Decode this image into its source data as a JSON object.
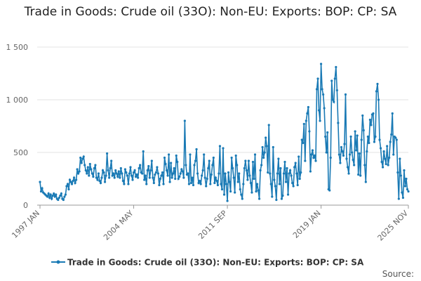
{
  "chart_data": {
    "type": "line",
    "title": "Trade in Goods: Crude oil (33O): Non-EU: Exports: BOP: CP: SA",
    "source": "Source:",
    "categories": [
      "1997 JAN",
      null,
      null,
      null,
      null,
      null,
      null,
      null,
      null,
      null,
      null,
      null,
      null,
      null,
      null,
      null,
      null,
      null,
      null,
      null,
      null,
      null,
      null,
      null,
      null,
      null,
      null,
      null,
      null,
      null,
      null,
      null,
      null,
      null,
      null,
      null,
      null,
      null,
      null,
      null,
      null,
      null,
      null,
      null,
      null,
      null,
      null,
      null,
      null,
      null,
      null,
      null,
      null,
      null,
      null,
      null,
      null,
      null,
      null,
      null,
      null,
      null,
      null,
      null,
      null,
      null,
      null,
      null,
      null,
      null,
      null,
      null,
      null,
      null,
      null,
      null,
      null,
      null,
      null,
      null,
      null,
      null,
      null,
      null,
      null,
      null,
      null,
      null,
      "2004 MAY",
      null,
      null,
      null,
      null,
      null,
      null,
      null,
      null,
      null,
      null,
      null,
      null,
      null,
      null,
      null,
      null,
      null,
      null,
      null,
      null,
      null,
      null,
      null,
      null,
      null,
      null,
      null,
      null,
      null,
      null,
      null,
      null,
      null,
      null,
      null,
      null,
      null,
      null,
      null,
      null,
      null,
      null,
      null,
      null,
      null,
      null,
      null,
      null,
      null,
      null,
      null,
      null,
      null,
      null,
      null,
      null,
      null,
      null,
      null,
      null,
      null,
      null,
      null,
      null,
      null,
      null,
      null,
      null,
      null,
      null,
      null,
      null,
      null,
      null,
      null,
      null,
      null,
      null,
      null,
      null,
      null,
      null,
      null,
      null,
      null,
      null,
      null,
      "2011 SEP",
      null,
      null,
      null,
      null,
      null,
      null,
      null,
      null,
      null,
      null,
      null,
      null,
      null,
      null,
      null,
      null,
      null,
      null,
      null,
      null,
      null,
      null,
      null,
      null,
      null,
      null,
      null,
      null,
      null,
      null,
      null,
      null,
      null,
      null,
      null,
      null,
      null,
      null,
      null,
      null,
      null,
      null,
      null,
      null,
      null,
      null,
      null,
      null,
      null,
      null,
      null,
      null,
      null,
      null,
      null,
      null,
      null,
      null,
      null,
      null,
      null,
      null,
      null,
      null,
      null,
      null,
      null,
      null,
      null,
      null,
      null,
      null,
      null,
      null,
      null,
      null,
      null,
      null,
      null,
      null,
      null,
      null,
      null,
      null,
      null,
      null,
      null,
      "2019 JAN",
      null,
      null,
      null,
      null,
      null,
      null,
      null,
      null,
      null,
      null,
      null,
      null,
      null,
      null,
      null,
      null,
      null,
      null,
      null,
      null,
      null,
      null,
      null,
      null,
      null,
      null,
      null,
      null,
      null,
      null,
      null,
      null,
      null,
      null,
      null,
      null,
      null,
      null,
      null,
      null,
      null,
      null,
      null,
      null,
      null,
      null,
      null,
      null,
      null,
      null,
      null,
      null,
      null,
      null,
      null,
      null,
      null,
      null,
      null,
      null,
      null,
      null,
      null,
      null,
      null,
      null,
      null,
      null,
      null,
      null,
      null,
      null,
      null,
      null,
      null,
      null,
      null,
      null,
      null,
      null,
      null,
      "2025 NOV"
    ],
    "series": [
      {
        "name": "Trade in Goods: Crude oil (33O): Non-EU: Exports: BOP: CP: SA",
        "color": "#1a7ab5",
        "values": [
          220,
          130,
          160,
          120,
          110,
          100,
          90,
          80,
          110,
          70,
          100,
          60,
          90,
          110,
          80,
          100,
          60,
          50,
          70,
          90,
          110,
          60,
          50,
          80,
          100,
          180,
          200,
          150,
          240,
          220,
          200,
          230,
          260,
          210,
          240,
          340,
          300,
          320,
          450,
          400,
          440,
          460,
          380,
          330,
          300,
          360,
          280,
          390,
          340,
          300,
          270,
          350,
          380,
          260,
          240,
          300,
          230,
          210,
          260,
          330,
          310,
          220,
          280,
          490,
          330,
          260,
          350,
          420,
          280,
          300,
          260,
          330,
          300,
          270,
          320,
          260,
          350,
          300,
          230,
          200,
          340,
          310,
          280,
          200,
          300,
          360,
          280,
          240,
          310,
          330,
          270,
          290,
          260,
          350,
          380,
          310,
          300,
          510,
          240,
          280,
          200,
          330,
          370,
          260,
          330,
          420,
          260,
          210,
          290,
          310,
          360,
          300,
          190,
          250,
          280,
          310,
          200,
          450,
          390,
          330,
          280,
          480,
          220,
          400,
          260,
          300,
          350,
          250,
          470,
          410,
          250,
          270,
          300,
          340,
          320,
          260,
          800,
          380,
          290,
          300,
          200,
          480,
          210,
          260,
          190,
          380,
          420,
          530,
          300,
          210,
          230,
          200,
          280,
          330,
          480,
          260,
          180,
          250,
          350,
          420,
          200,
          290,
          380,
          450,
          210,
          260,
          230,
          190,
          300,
          560,
          200,
          150,
          540,
          100,
          300,
          200,
          40,
          310,
          220,
          130,
          450,
          350,
          260,
          120,
          470,
          380,
          220,
          300,
          150,
          100,
          60,
          200,
          350,
          420,
          330,
          240,
          420,
          280,
          210,
          120,
          410,
          250,
          480,
          130,
          200,
          140,
          60,
          330,
          380,
          550,
          450,
          500,
          640,
          560,
          310,
          760,
          300,
          200,
          80,
          550,
          240,
          180,
          50,
          300,
          440,
          200,
          350,
          60,
          90,
          300,
          410,
          220,
          350,
          100,
          300,
          330,
          280,
          210,
          180,
          360,
          400,
          300,
          190,
          460,
          250,
          310,
          620,
          590,
          770,
          420,
          800,
          870,
          930,
          700,
          320,
          480,
          520,
          450,
          470,
          420,
          1100,
          1200,
          900,
          800,
          1340,
          1100,
          1050,
          920,
          650,
          500,
          690,
          150,
          140,
          450,
          1180,
          1000,
          980,
          1200,
          1310,
          1090,
          780,
          480,
          400,
          550,
          510,
          470,
          580,
          1050,
          440,
          360,
          300,
          480,
          650,
          500,
          430,
          380,
          700,
          520,
          660,
          290,
          490,
          280,
          620,
          850,
          710,
          380,
          220,
          510,
          650,
          590,
          810,
          760,
          860,
          870,
          600,
          650,
          1080,
          1150,
          1000,
          620,
          540,
          410,
          360,
          510,
          440,
          390,
          560,
          380,
          450,
          600,
          670,
          870,
          480,
          650,
          640,
          620,
          310,
          60,
          440,
          280,
          120,
          70,
          330,
          180,
          250,
          150,
          130
        ]
      }
    ],
    "ylim": [
      0,
      1500
    ],
    "yticks": [
      0,
      500,
      {
        "value": 1000,
        "label": "1 000"
      },
      {
        "value": 1500,
        "label": "1 500"
      }
    ],
    "grid": true
  }
}
